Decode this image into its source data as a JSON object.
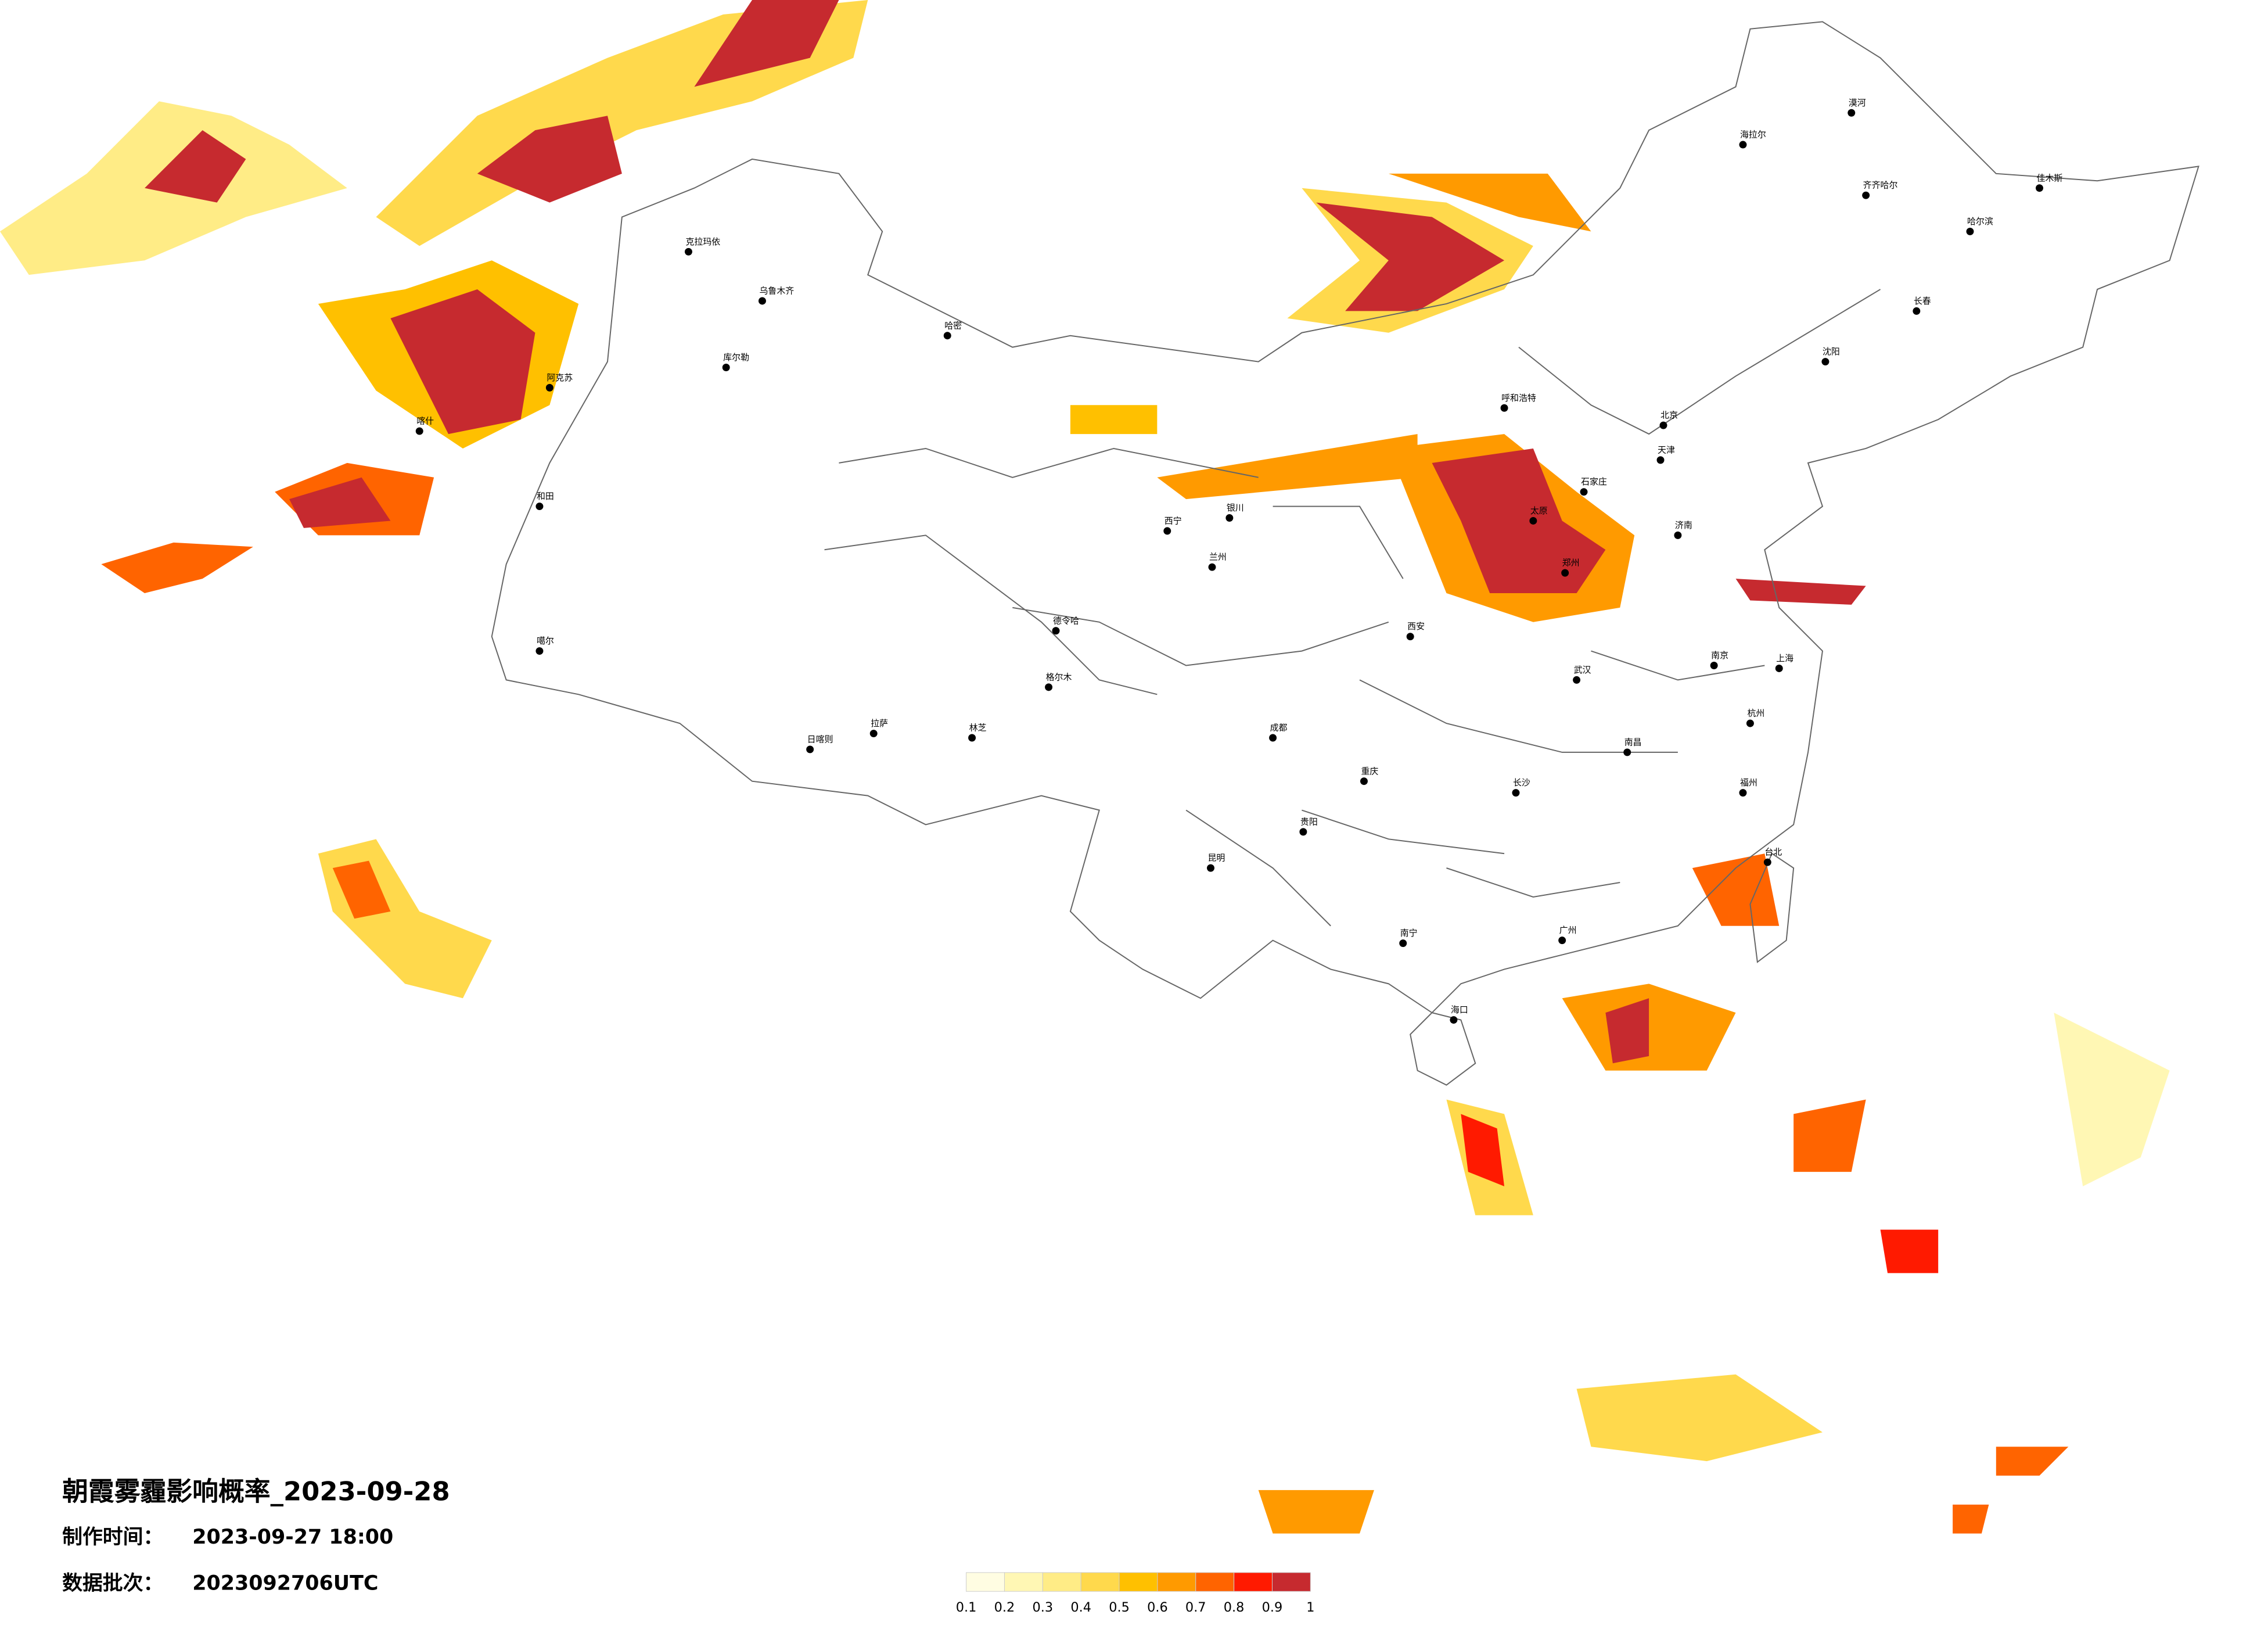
{
  "title": "朝霞雾霾影响概率_2023-09-28",
  "made_time_label": "制作时间：",
  "made_time": "2023-09-27 18:00",
  "batch_label": "数据批次：",
  "batch": "2023092706UTC",
  "legend": {
    "colors": [
      "#fffde2",
      "#fff7b4",
      "#ffec86",
      "#ffd94c",
      "#ffc000",
      "#ff9a00",
      "#ff6400",
      "#ff1a00",
      "#c62a2f"
    ],
    "ticks": [
      0.1,
      0.2,
      0.3,
      0.4,
      0.5,
      0.6,
      0.7,
      0.8,
      0.9,
      1
    ]
  },
  "cities": [
    "克拉玛依",
    "乌鲁木齐",
    "哈密",
    "库尔勒",
    "阿克苏",
    "喀什",
    "和田",
    "噶尔",
    "日喀则",
    "拉萨",
    "林芝",
    "格尔木",
    "德令哈",
    "西宁",
    "兰州",
    "银川",
    "呼和浩特",
    "北京",
    "天津",
    "石家庄",
    "太原",
    "济南",
    "郑州",
    "西安",
    "成都",
    "重庆",
    "昆明",
    "贵阳",
    "南宁",
    "长沙",
    "武汉",
    "南京",
    "上海",
    "杭州",
    "南昌",
    "福州",
    "广州",
    "海口",
    "台北",
    "沈阳",
    "长春",
    "哈尔滨",
    "齐齐哈尔",
    "海拉尔",
    "漠河",
    "佳木斯"
  ]
}
